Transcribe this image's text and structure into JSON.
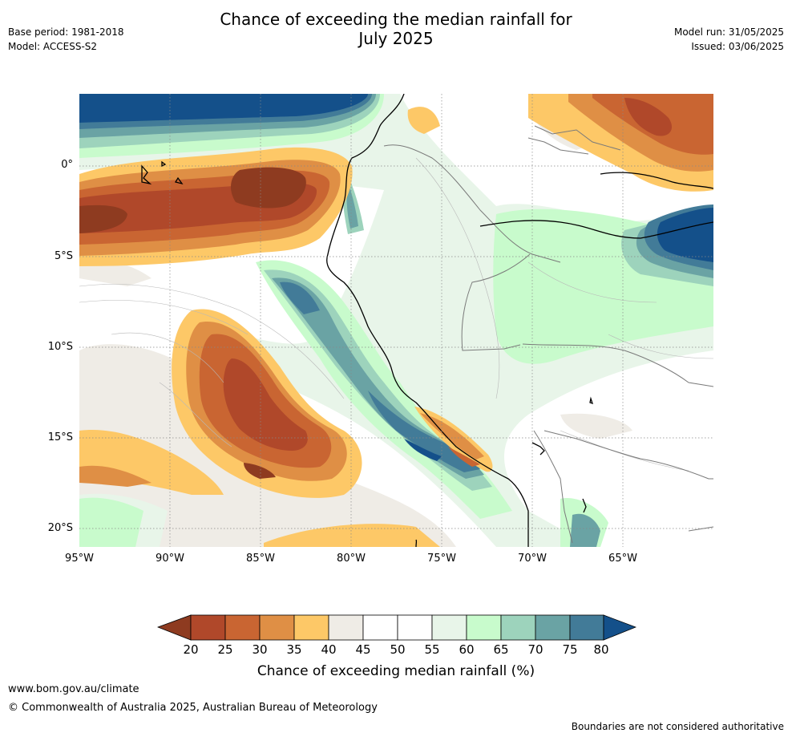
{
  "header": {
    "title_line1": "Chance of exceeding the median rainfall for",
    "title_line2": "July 2025",
    "base_period": "Base period: 1981-2018",
    "model": "Model: ACCESS-S2",
    "model_run": "Model run: 31/05/2025",
    "issued": "Issued: 03/06/2025"
  },
  "map": {
    "lat_labels": [
      "0°",
      "5°S",
      "10°S",
      "15°S",
      "20°S"
    ],
    "lon_labels": [
      "95°W",
      "90°W",
      "85°W",
      "80°W",
      "75°W",
      "70°W",
      "65°W"
    ]
  },
  "colorbar": {
    "ticks": [
      "20",
      "25",
      "30",
      "35",
      "40",
      "45",
      "50",
      "55",
      "60",
      "65",
      "70",
      "75",
      "80"
    ],
    "colors": [
      "#8e3b20",
      "#b0482a",
      "#c96532",
      "#df8f45",
      "#fdc867",
      "#efece6",
      "#ffffff",
      "#ffffff",
      "#e8f5e9",
      "#c8fbcc",
      "#9dd3bc",
      "#6aa3a4",
      "#427b98",
      "#14508a"
    ],
    "label": "Chance of exceeding median rainfall (%)"
  },
  "footer": {
    "url": "www.bom.gov.au/climate",
    "copyright": "© Commonwealth of Australia 2025, Australian Bureau of Meteorology",
    "disclaimer": "Boundaries are not considered authoritative"
  }
}
